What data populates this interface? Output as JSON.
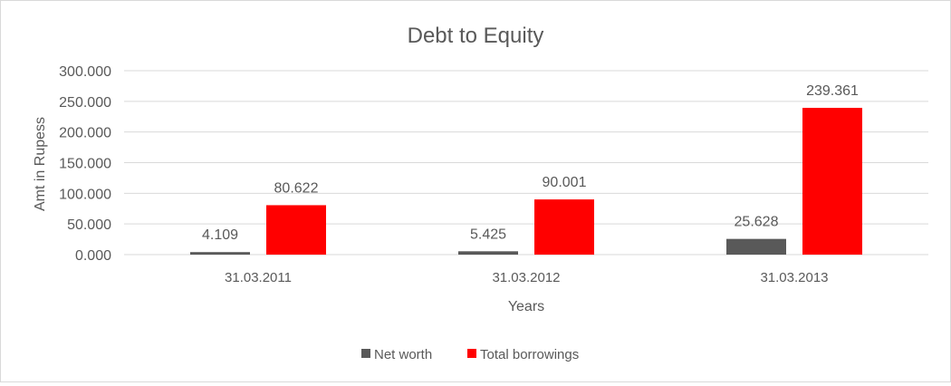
{
  "chart_data": {
    "type": "bar",
    "title": "Debt to Equity",
    "xlabel": "Years",
    "ylabel": "Amt in Rupess",
    "categories": [
      "31.03.2011",
      "31.03.2012",
      "31.03.2013"
    ],
    "series": [
      {
        "name": "Net worth",
        "color": "#595959",
        "values": [
          4.109,
          5.425,
          25.628
        ],
        "labels": [
          "4.109",
          "5.425",
          "25.628"
        ]
      },
      {
        "name": "Total borrowings",
        "color": "#ff0000",
        "values": [
          80.622,
          90.001,
          239.361
        ],
        "labels": [
          "80.622",
          "90.001",
          "239.361"
        ]
      }
    ],
    "ylim": [
      0,
      300
    ],
    "yticks": [
      "0.000",
      "50.000",
      "100.000",
      "150.000",
      "200.000",
      "250.000",
      "300.000"
    ],
    "grid": true,
    "legend": "bottom"
  }
}
